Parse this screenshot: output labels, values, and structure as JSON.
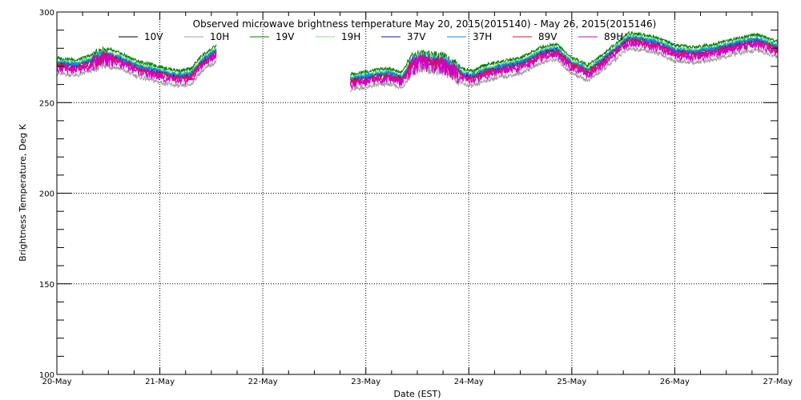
{
  "chart_data": {
    "type": "line",
    "title": "Observed microwave brightness temperature May 20, 2015(2015140) - May 26, 2015(2015146)",
    "xlabel": "Date (EST)",
    "ylabel": "Brightness Temperature, Deg K",
    "xlim": [
      0,
      7
    ],
    "ylim": [
      100,
      300
    ],
    "x_tick_labels": [
      "20-May",
      "21-May",
      "22-May",
      "23-May",
      "24-May",
      "25-May",
      "26-May",
      "27-May"
    ],
    "x_tick_values": [
      0,
      1,
      2,
      3,
      4,
      5,
      6,
      7
    ],
    "y_tick_values": [
      100,
      150,
      200,
      250,
      300
    ],
    "grid": true,
    "legend_position": "top",
    "segments": [
      [
        0,
        1.55
      ],
      [
        2.85,
        7
      ]
    ],
    "base_curve": [
      [
        0,
        272
      ],
      [
        0.2,
        271
      ],
      [
        0.35,
        274
      ],
      [
        0.45,
        277
      ],
      [
        0.6,
        275
      ],
      [
        0.8,
        270
      ],
      [
        0.95,
        268
      ],
      [
        1.1,
        266
      ],
      [
        1.2,
        265
      ],
      [
        1.3,
        266
      ],
      [
        1.4,
        273
      ],
      [
        1.55,
        279
      ],
      [
        2.85,
        263
      ],
      [
        2.95,
        264
      ],
      [
        3.05,
        265
      ],
      [
        3.15,
        266
      ],
      [
        3.25,
        266
      ],
      [
        3.35,
        264
      ],
      [
        3.45,
        273
      ],
      [
        3.55,
        275
      ],
      [
        3.65,
        274
      ],
      [
        3.75,
        273
      ],
      [
        3.85,
        270
      ],
      [
        3.95,
        266
      ],
      [
        4.05,
        265
      ],
      [
        4.15,
        268
      ],
      [
        4.3,
        270
      ],
      [
        4.5,
        272
      ],
      [
        4.7,
        278
      ],
      [
        4.85,
        280
      ],
      [
        5.0,
        272
      ],
      [
        5.1,
        270
      ],
      [
        5.15,
        268
      ],
      [
        5.3,
        274
      ],
      [
        5.45,
        281
      ],
      [
        5.55,
        286
      ],
      [
        5.7,
        285
      ],
      [
        5.85,
        283
      ],
      [
        6.0,
        279
      ],
      [
        6.2,
        278
      ],
      [
        6.4,
        280
      ],
      [
        6.6,
        283
      ],
      [
        6.8,
        285
      ],
      [
        7.0,
        281
      ]
    ],
    "series": [
      {
        "name": "10V",
        "color": "#000000",
        "offset": 0.0,
        "jitter": 0.6
      },
      {
        "name": "10H",
        "color": "#a0a0a0",
        "offset": -6.0,
        "jitter": 1.2
      },
      {
        "name": "19V",
        "color": "#008000",
        "offset": 2.5,
        "jitter": 1.0
      },
      {
        "name": "19H",
        "color": "#80e080",
        "offset": 1.0,
        "jitter": 1.0
      },
      {
        "name": "37V",
        "color": "#1010c0",
        "offset": -1.0,
        "jitter": 0.8
      },
      {
        "name": "37H",
        "color": "#0090e0",
        "offset": 0.0,
        "jitter": 1.5
      },
      {
        "name": "89V",
        "color": "#e01030",
        "offset": -2.0,
        "jitter": 2.0
      },
      {
        "name": "89H",
        "color": "#d000d0",
        "offset": -3.0,
        "jitter": 2.4
      }
    ]
  }
}
